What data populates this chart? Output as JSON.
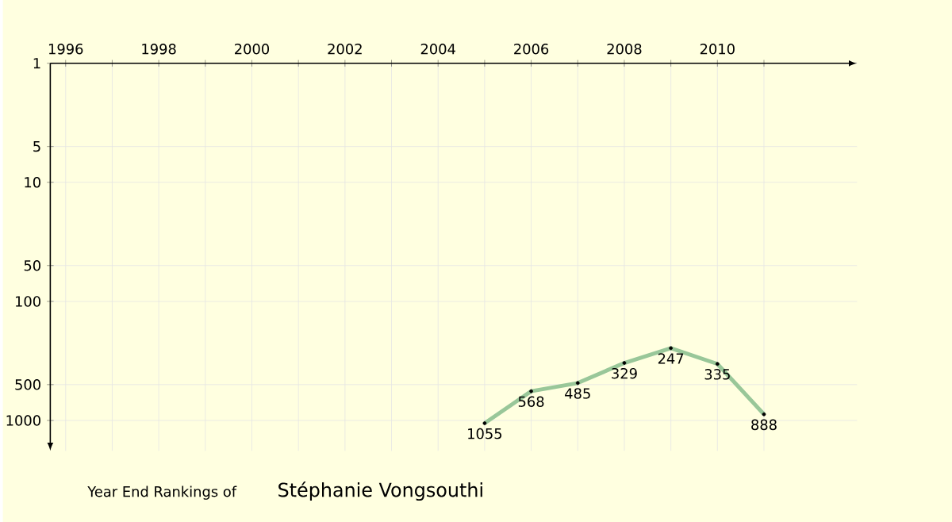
{
  "chart_data": {
    "type": "line",
    "title": "Year End Rankings of",
    "subtitle": "Stéphanie Vongsouthi",
    "x": [
      2005,
      2006,
      2007,
      2008,
      2009,
      2010,
      2011
    ],
    "series": [
      {
        "color": "#99c799",
        "values": [
          1055,
          568,
          485,
          329,
          247,
          335,
          888
        ]
      }
    ],
    "xlim": [
      1995.67,
      2013
    ],
    "xticks": [
      1996,
      {
        "value": 1997,
        "label": null
      },
      1998,
      {
        "value": 1999,
        "label": null
      },
      2000,
      {
        "value": 2001,
        "label": null
      },
      2002,
      {
        "value": 2003,
        "label": null
      },
      2004,
      {
        "value": 2005,
        "label": null
      },
      2006,
      {
        "value": 2007,
        "label": null
      },
      2008,
      {
        "value": 2009,
        "label": null
      },
      2010,
      {
        "value": 2011,
        "label": null
      }
    ],
    "ylim": [
      1800,
      1
    ],
    "log": "y",
    "yticks": [
      1,
      5,
      10,
      50,
      100,
      500,
      1000
    ],
    "grid": true,
    "data_labels": true,
    "marker": "circle",
    "line_style": "solid"
  }
}
